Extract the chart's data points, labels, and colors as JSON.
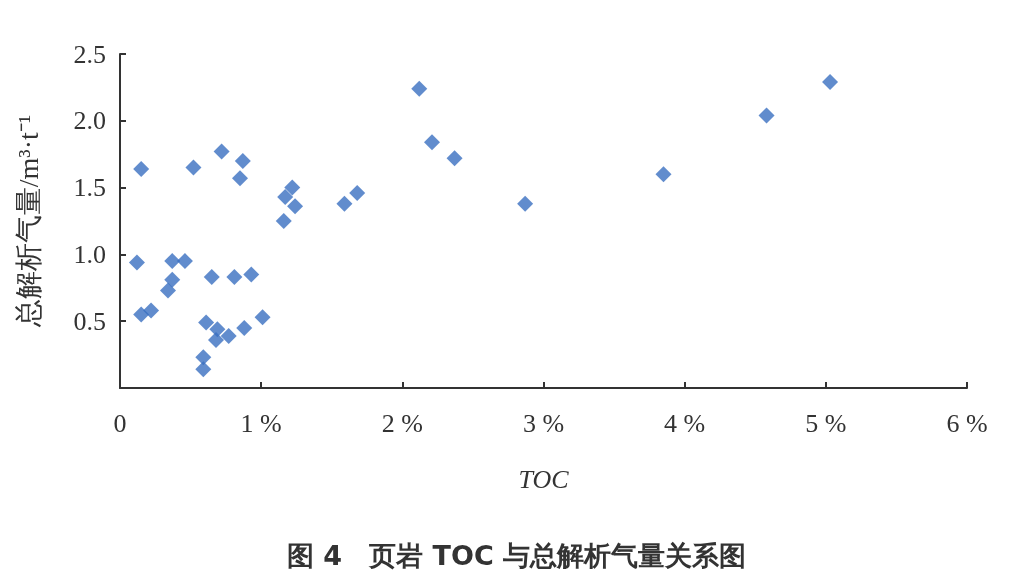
{
  "chart_data": {
    "type": "scatter",
    "title": "图 4　页岩 TOC 与总解析气量关系图",
    "xlabel": "TOC",
    "ylabel": "总解析气量/m³·t⁻¹",
    "x": [
      0.15,
      0.12,
      0.15,
      0.22,
      0.34,
      0.37,
      0.37,
      0.46,
      0.52,
      0.72,
      0.87,
      0.85,
      0.65,
      0.81,
      0.93,
      0.61,
      0.69,
      0.68,
      0.77,
      0.88,
      1.01,
      0.59,
      0.59,
      1.17,
      1.22,
      1.24,
      1.16,
      1.59,
      1.68,
      2.12,
      2.21,
      2.37,
      2.87,
      3.85,
      4.58,
      5.03
    ],
    "series": [
      {
        "color": "#3a6fc0",
        "values": [
          1.64,
          0.94,
          0.55,
          0.58,
          0.73,
          0.81,
          0.95,
          0.95,
          1.65,
          1.77,
          1.7,
          1.57,
          0.83,
          0.83,
          0.85,
          0.49,
          0.44,
          0.36,
          0.39,
          0.45,
          0.53,
          0.23,
          0.14,
          1.43,
          1.5,
          1.36,
          1.25,
          1.38,
          1.46,
          2.24,
          1.84,
          1.72,
          1.38,
          1.6,
          2.04,
          2.29
        ]
      }
    ],
    "xlim": [
      0,
      6
    ],
    "xticks": [
      0,
      {
        "value": 1,
        "label": "1 %"
      },
      {
        "value": 2,
        "label": "2 %"
      },
      {
        "value": 3,
        "label": "3 %"
      },
      {
        "value": 4,
        "label": "4 %"
      },
      {
        "value": 5,
        "label": "5 %"
      },
      {
        "value": 6,
        "label": "6 %"
      }
    ],
    "ylim": [
      0,
      2.5
    ],
    "yticks": [
      0.5,
      {
        "value": 1,
        "label": "1.0"
      },
      1.5,
      {
        "value": 2,
        "label": "2.0"
      },
      2.5
    ],
    "grid": false,
    "marker": "diamond"
  }
}
